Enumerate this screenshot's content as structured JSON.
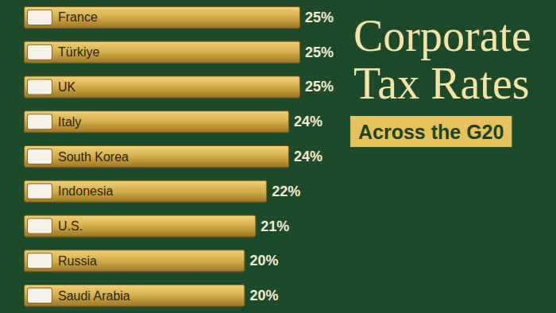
{
  "chart_data": {
    "type": "bar",
    "title": "Corporate Tax Rates",
    "subtitle": "Across the G20",
    "orientation": "horizontal",
    "categories": [
      "France",
      "Türkiye",
      "UK",
      "Italy",
      "South Korea",
      "Indonesia",
      "U.S.",
      "Russia",
      "Saudi Arabia"
    ],
    "values": [
      25,
      25,
      25,
      24,
      24,
      22,
      21,
      20,
      20
    ],
    "value_labels": [
      "25%",
      "25%",
      "25%",
      "24%",
      "24%",
      "22%",
      "21%",
      "20%",
      "20%"
    ],
    "color": "#d4ad4a",
    "xlim": [
      0,
      25
    ],
    "grid": false,
    "data_labels": true,
    "tick_labels": "y"
  }
}
